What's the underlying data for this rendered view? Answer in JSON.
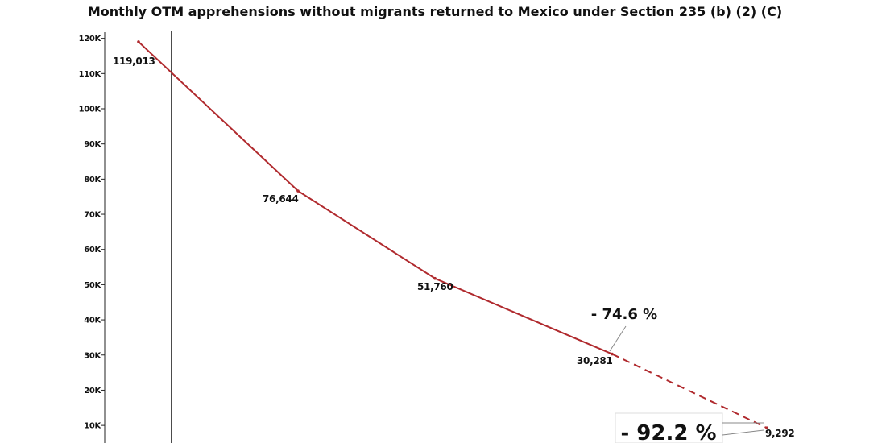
{
  "chart_data": {
    "type": "line",
    "title": "Monthly OTM apprehensions without migrants returned to Mexico under Section 235 (b) (2) (C)",
    "xlabel": "",
    "ylabel": "",
    "ylim": [
      0,
      120000
    ],
    "yticks": [
      10000,
      20000,
      30000,
      40000,
      50000,
      60000,
      70000,
      80000,
      90000,
      100000,
      110000,
      120000
    ],
    "ytick_labels": [
      "10K",
      "20K",
      "30K",
      "40K",
      "50K",
      "60K",
      "70K",
      "80K",
      "90K",
      "100K",
      "110K",
      "120K"
    ],
    "series": [
      {
        "color": "#b02a2e",
        "points": [
          {
            "value": 119013,
            "label": "119,013",
            "style": "solid"
          },
          {
            "value": 76644,
            "label": "76,644",
            "style": "solid"
          },
          {
            "value": 51760,
            "label": "51,760",
            "style": "solid"
          },
          {
            "value": 30281,
            "label": "30,281",
            "style": "solid"
          },
          {
            "value": 9292,
            "label": "9,292",
            "style": "dashed"
          }
        ]
      }
    ],
    "annotations": [
      {
        "text": "- 74.6 %",
        "size": "small"
      },
      {
        "text": "- 92.2 %",
        "size": "large"
      }
    ],
    "grid": false,
    "legend": "none"
  }
}
